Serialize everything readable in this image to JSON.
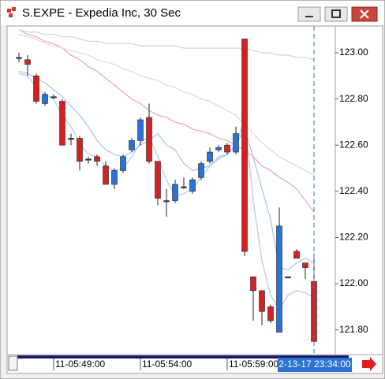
{
  "chart_data": {
    "type": "candlestick",
    "title": "S.EXPE - Expedia Inc, 30 Sec",
    "categories": [
      null,
      null,
      null,
      null,
      "11-05:49:00",
      null,
      null,
      null,
      null,
      null,
      null,
      null,
      null,
      null,
      "11-05:54:00",
      null,
      null,
      null,
      null,
      null,
      null,
      null,
      null,
      null,
      "11-05:59:00",
      null,
      null,
      null,
      null,
      null,
      null,
      null,
      null,
      null,
      null
    ],
    "open": [
      122.98,
      122.97,
      122.9,
      122.78,
      122.81,
      122.79,
      122.63,
      122.63,
      122.54,
      122.55,
      122.51,
      122.43,
      122.49,
      122.58,
      122.62,
      122.72,
      122.53,
      122.36,
      122.36,
      122.42,
      122.4,
      122.46,
      122.53,
      122.58,
      122.6,
      122.57,
      123.06,
      122.03,
      121.97,
      121.9,
      121.79,
      122.03,
      122.14,
      122.09,
      122.01
    ],
    "high": [
      123.0,
      122.99,
      122.91,
      122.83,
      122.82,
      122.8,
      122.65,
      122.64,
      122.55,
      122.56,
      122.53,
      122.5,
      122.56,
      122.63,
      122.72,
      122.78,
      122.53,
      122.41,
      122.45,
      122.46,
      122.46,
      122.53,
      122.59,
      122.6,
      122.61,
      122.68,
      123.06,
      122.03,
      121.97,
      121.91,
      122.33,
      122.03,
      122.15,
      122.09,
      122.13
    ],
    "low": [
      122.96,
      122.9,
      122.78,
      122.77,
      122.8,
      122.6,
      122.6,
      122.49,
      122.52,
      122.51,
      122.43,
      122.41,
      122.48,
      122.57,
      122.6,
      122.52,
      122.34,
      122.29,
      122.35,
      122.41,
      122.39,
      122.45,
      122.52,
      122.57,
      122.56,
      122.56,
      122.12,
      121.84,
      121.82,
      121.83,
      121.79,
      122.03,
      122.11,
      122.02,
      121.74
    ],
    "close": [
      122.98,
      122.95,
      122.79,
      122.82,
      122.81,
      122.6,
      122.63,
      122.53,
      122.54,
      122.53,
      122.43,
      122.49,
      122.55,
      122.62,
      122.71,
      122.53,
      122.37,
      122.36,
      122.43,
      122.42,
      122.45,
      122.52,
      122.57,
      122.59,
      122.57,
      122.65,
      122.14,
      121.97,
      121.88,
      121.84,
      122.25,
      122.03,
      122.11,
      122.07,
      121.75
    ],
    "up_color": "#2a72d4",
    "down_color": "#d42121",
    "doji_color": "#333333",
    "overlays": [
      {
        "color": "#b7cce6",
        "values": [
          122.91,
          122.9,
          122.85,
          122.82,
          122.8,
          122.73,
          122.68,
          122.61,
          122.56,
          122.55,
          122.51,
          122.49,
          122.5,
          122.55,
          122.61,
          122.64,
          122.55,
          122.45,
          122.38,
          122.39,
          122.41,
          122.46,
          122.51,
          122.55,
          122.56,
          122.6,
          122.71,
          122.36,
          122.1,
          121.95,
          121.89,
          121.95,
          121.97,
          121.96,
          121.94
        ]
      },
      {
        "color": "#a9c8ea",
        "values": [
          122.92,
          122.91,
          122.89,
          122.87,
          122.84,
          122.81,
          122.77,
          122.73,
          122.68,
          122.62,
          122.58,
          122.56,
          122.55,
          122.57,
          122.6,
          122.62,
          122.65,
          122.6,
          122.58,
          122.52,
          122.49,
          122.5,
          122.51,
          122.54,
          122.56,
          122.6,
          122.67,
          122.55,
          122.41,
          122.28,
          122.07,
          122.06,
          122.09,
          122.11,
          122.09
        ]
      },
      {
        "color": "#eaa9bb",
        "values": [
          123.1,
          123.08,
          123.07,
          123.05,
          123.04,
          123.02,
          122.99,
          122.97,
          122.94,
          122.92,
          122.89,
          122.86,
          122.83,
          122.8,
          122.78,
          122.75,
          122.73,
          122.72,
          122.7,
          122.69,
          122.67,
          122.66,
          122.65,
          122.63,
          122.62,
          122.6,
          122.58,
          122.55,
          122.51,
          122.49,
          122.46,
          122.44,
          122.41,
          122.36,
          122.31
        ]
      },
      {
        "color": "#dcdcdc",
        "values": [
          123.08,
          123.07,
          123.06,
          123.04,
          123.03,
          123.02,
          123.01,
          123.0,
          122.99,
          122.97,
          122.96,
          122.95,
          122.93,
          122.92,
          122.9,
          122.89,
          122.88,
          122.86,
          122.85,
          122.83,
          122.82,
          122.8,
          122.79,
          122.77,
          122.75,
          122.73,
          122.69,
          122.65,
          122.61,
          122.58,
          122.55,
          122.53,
          122.51,
          122.49,
          122.47
        ]
      },
      {
        "color": "#d6d6d6",
        "values": [
          123.1,
          123.09,
          123.09,
          123.08,
          123.08,
          123.07,
          123.07,
          123.06,
          123.05,
          123.05,
          123.04,
          123.04,
          123.04,
          123.04,
          123.03,
          123.03,
          123.03,
          123.03,
          123.03,
          123.02,
          123.02,
          123.02,
          123.02,
          123.02,
          123.02,
          123.02,
          123.02,
          123.01,
          123.0,
          123.0,
          122.99,
          122.99,
          122.98,
          122.98,
          122.97
        ]
      }
    ],
    "cursor_label": "2-13-17 23:34:00",
    "ylim": [
      121.7,
      123.116
    ],
    "yticks": [
      {
        "value": 121.8,
        "label": "121.80"
      },
      {
        "value": 122.0,
        "label": "122.00"
      },
      {
        "value": 122.2,
        "label": "122.20"
      },
      {
        "value": 122.4,
        "label": "122.40"
      },
      {
        "value": 122.6,
        "label": "122.60"
      },
      {
        "value": 122.8,
        "label": "122.80"
      },
      {
        "value": 123.0,
        "label": "123.00"
      }
    ]
  }
}
